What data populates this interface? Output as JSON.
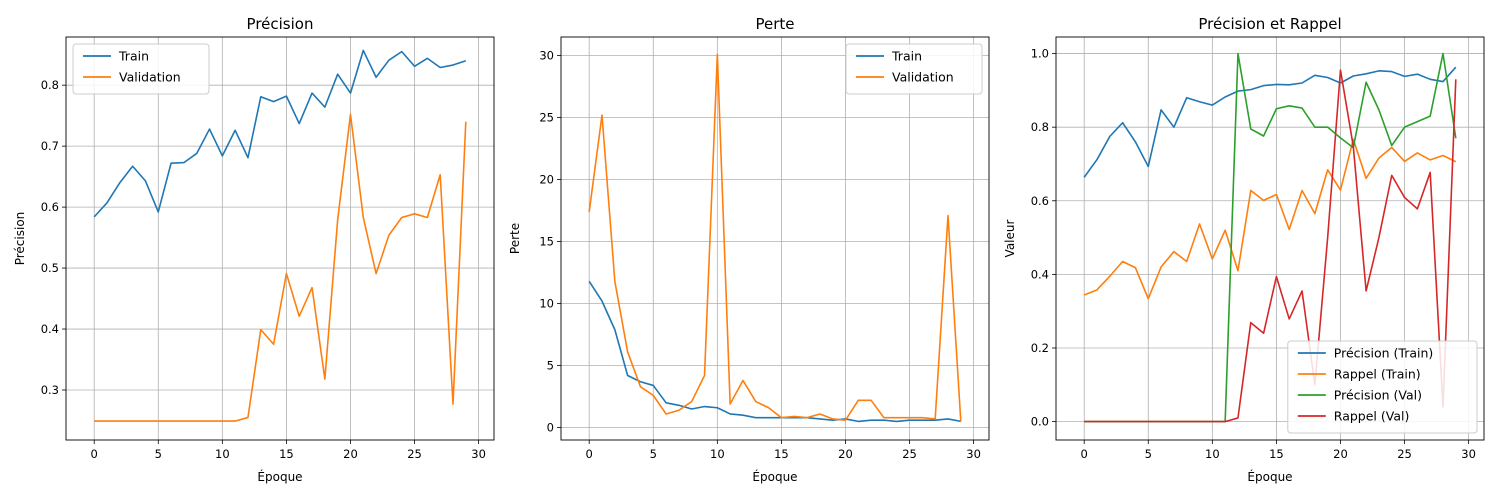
{
  "chart_data": [
    {
      "type": "line",
      "title": "Précision",
      "xlabel": "Époque",
      "ylabel": "Précision",
      "xlim": [
        -2.2,
        31.2
      ],
      "ylim": [
        0.218,
        0.879
      ],
      "xticks": [
        0,
        5,
        10,
        15,
        20,
        25,
        30
      ],
      "yticks": [
        0.3,
        0.4,
        0.5,
        0.6,
        0.7,
        0.8
      ],
      "grid": true,
      "legend": "top-left",
      "series": [
        {
          "name": "Train",
          "color": "#1f77b4",
          "values": [
            0.584,
            0.607,
            0.64,
            0.667,
            0.643,
            0.592,
            0.672,
            0.673,
            0.688,
            0.728,
            0.684,
            0.726,
            0.681,
            0.781,
            0.773,
            0.782,
            0.737,
            0.787,
            0.764,
            0.818,
            0.787,
            0.857,
            0.813,
            0.841,
            0.855,
            0.831,
            0.844,
            0.829,
            0.833,
            0.84
          ]
        },
        {
          "name": "Validation",
          "color": "#ff7f0e",
          "values": [
            0.249,
            0.249,
            0.249,
            0.249,
            0.249,
            0.249,
            0.249,
            0.249,
            0.249,
            0.249,
            0.249,
            0.249,
            0.255,
            0.399,
            0.375,
            0.491,
            0.421,
            0.468,
            0.318,
            0.579,
            0.752,
            0.583,
            0.491,
            0.554,
            0.583,
            0.589,
            0.583,
            0.653,
            0.277,
            0.74
          ]
        }
      ]
    },
    {
      "type": "line",
      "title": "Perte",
      "xlabel": "Époque",
      "ylabel": "Perte",
      "xlim": [
        -2.2,
        31.2
      ],
      "ylim": [
        -1.0,
        31.5
      ],
      "xticks": [
        0,
        5,
        10,
        15,
        20,
        25,
        30
      ],
      "yticks": [
        0,
        5,
        10,
        15,
        20,
        25,
        30
      ],
      "grid": true,
      "legend": "top-right",
      "series": [
        {
          "name": "Train",
          "color": "#1f77b4",
          "values": [
            11.8,
            10.2,
            7.9,
            4.2,
            3.7,
            3.4,
            2.0,
            1.8,
            1.5,
            1.7,
            1.6,
            1.1,
            1.0,
            0.8,
            0.8,
            0.8,
            0.8,
            0.8,
            0.7,
            0.6,
            0.7,
            0.5,
            0.6,
            0.6,
            0.5,
            0.6,
            0.6,
            0.6,
            0.7,
            0.5
          ]
        },
        {
          "name": "Validation",
          "color": "#ff7f0e",
          "values": [
            17.4,
            25.2,
            11.8,
            6.1,
            3.3,
            2.6,
            1.1,
            1.4,
            2.1,
            4.2,
            30.1,
            1.9,
            3.8,
            2.1,
            1.6,
            0.8,
            0.9,
            0.8,
            1.1,
            0.7,
            0.6,
            2.2,
            2.2,
            0.8,
            0.8,
            0.8,
            0.8,
            0.7,
            17.1,
            0.5
          ]
        }
      ]
    },
    {
      "type": "line",
      "title": "Précision et Rappel",
      "xlabel": "Époque",
      "ylabel": "Valeur",
      "xlim": [
        -2.2,
        31.2
      ],
      "ylim": [
        -0.05,
        1.045
      ],
      "xticks": [
        0,
        5,
        10,
        15,
        20,
        25,
        30
      ],
      "yticks": [
        0.0,
        0.2,
        0.4,
        0.6,
        0.8,
        1.0
      ],
      "grid": true,
      "legend": "bottom-right",
      "series": [
        {
          "name": "Précision (Train)",
          "color": "#1f77b4",
          "values": [
            0.664,
            0.712,
            0.775,
            0.812,
            0.76,
            0.693,
            0.847,
            0.8,
            0.88,
            0.869,
            0.86,
            0.882,
            0.898,
            0.902,
            0.913,
            0.916,
            0.915,
            0.92,
            0.941,
            0.935,
            0.92,
            0.939,
            0.945,
            0.953,
            0.951,
            0.938,
            0.944,
            0.93,
            0.924,
            0.963
          ]
        },
        {
          "name": "Rappel (Train)",
          "color": "#ff7f0e",
          "values": [
            0.344,
            0.358,
            0.395,
            0.435,
            0.418,
            0.334,
            0.42,
            0.462,
            0.435,
            0.537,
            0.442,
            0.52,
            0.41,
            0.628,
            0.601,
            0.617,
            0.522,
            0.628,
            0.565,
            0.684,
            0.629,
            0.767,
            0.661,
            0.716,
            0.745,
            0.707,
            0.73,
            0.711,
            0.723,
            0.706
          ]
        },
        {
          "name": "Précision (Val)",
          "color": "#2ca02c",
          "values": [
            0,
            0,
            0,
            0,
            0,
            0,
            0,
            0,
            0,
            0,
            0,
            0,
            1.0,
            0.795,
            0.776,
            0.85,
            0.858,
            0.852,
            0.8,
            0.8,
            0.771,
            0.744,
            0.922,
            0.847,
            0.75,
            0.8,
            0.815,
            0.83,
            1.0,
            0.77
          ]
        },
        {
          "name": "Rappel (Val)",
          "color": "#d62728",
          "values": [
            0,
            0,
            0,
            0,
            0,
            0,
            0,
            0,
            0,
            0,
            0,
            0,
            0.01,
            0.269,
            0.24,
            0.394,
            0.279,
            0.355,
            0.1,
            0.5,
            0.955,
            0.748,
            0.355,
            0.5,
            0.669,
            0.609,
            0.578,
            0.677,
            0.04,
            0.93
          ]
        }
      ]
    }
  ]
}
